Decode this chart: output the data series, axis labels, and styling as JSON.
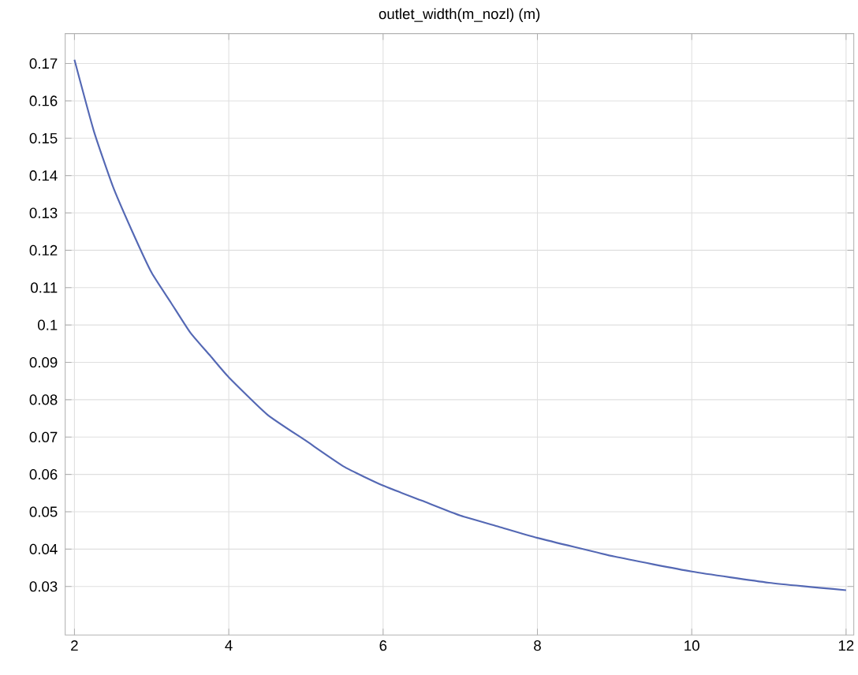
{
  "chart_data": {
    "type": "line",
    "title": "outlet_width(m_nozl) (m)",
    "x": [
      2,
      2.25,
      2.5,
      2.75,
      3,
      3.25,
      3.5,
      3.75,
      4,
      4.5,
      5,
      5.5,
      6,
      6.5,
      7,
      7.5,
      8,
      9,
      10,
      11,
      12
    ],
    "series": [
      {
        "color": "#5468b4",
        "values": [
          0.171,
          0.152,
          0.137,
          0.125,
          0.114,
          0.106,
          0.098,
          0.092,
          0.086,
          0.076,
          0.069,
          0.062,
          0.057,
          0.053,
          0.049,
          0.046,
          0.043,
          0.038,
          0.034,
          0.031,
          0.029
        ]
      }
    ],
    "xlim": [
      1.88,
      12.1
    ],
    "ylim": [
      0.017,
      0.178
    ],
    "xticks": [
      2,
      4,
      6,
      8,
      10,
      12
    ],
    "yticks": [
      0.03,
      0.04,
      0.05,
      0.06,
      0.07,
      0.08,
      0.09,
      0.1,
      0.11,
      0.12,
      0.13,
      0.14,
      0.15,
      0.16,
      0.17
    ],
    "grid": true,
    "marker": "none",
    "line_style": "solid"
  }
}
